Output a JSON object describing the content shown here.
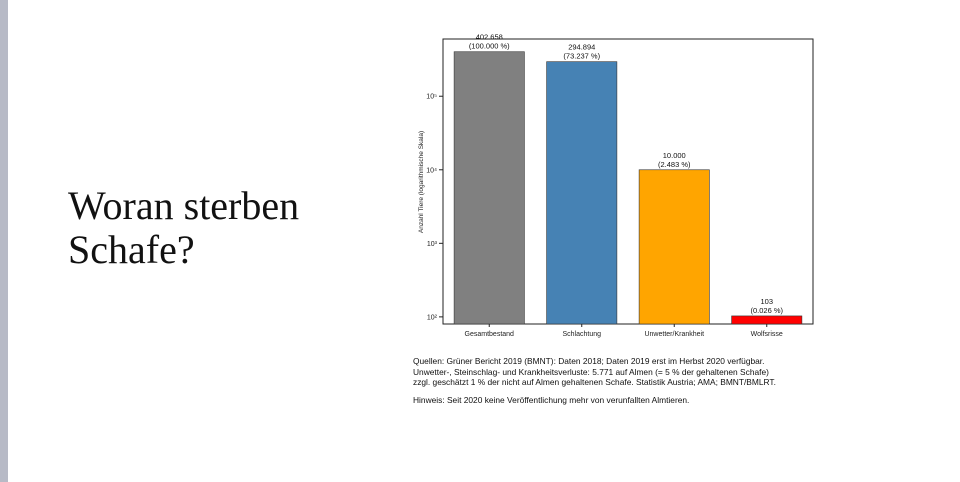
{
  "slide": {
    "title_line1": "Woran sterben",
    "title_line2": "Schafe?"
  },
  "chart_data": {
    "type": "bar",
    "ylabel": "Anzahl Tiere (logarithmische Skala)",
    "yscale": "log",
    "ylim": [
      80,
      600000
    ],
    "yticks": [
      {
        "value": 100,
        "label": "10²"
      },
      {
        "value": 1000,
        "label": "10³"
      },
      {
        "value": 10000,
        "label": "10⁴"
      },
      {
        "value": 100000,
        "label": "10⁵"
      }
    ],
    "categories": [
      "Gesamtbestand",
      "Schlachtung",
      "Unwetter/Krankheit",
      "Wolfsrisse"
    ],
    "values": [
      402658,
      294894,
      10000,
      103
    ],
    "value_labels": [
      "402.658",
      "294.894",
      "10.000",
      "103"
    ],
    "percent_labels": [
      "(100.000 %)",
      "(73.237 %)",
      "(2.483 %)",
      "(0.026 %)"
    ],
    "colors": [
      "#808080",
      "#4682b4",
      "#ffa500",
      "#ff0000"
    ],
    "grid": false
  },
  "sources": {
    "line1": "Quellen: Grüner Bericht 2019 (BMNT): Daten 2018; Daten 2019 erst im Herbst 2020 verfügbar.",
    "line2": "Unwetter-, Steinschlag- und Krankheitsverluste: 5.771 auf Almen (= 5 % der gehaltenen Schafe)",
    "line3": "zzgl. geschätzt 1 % der nicht auf Almen gehaltenen Schafe. Statistik Austria; AMA; BMNT/BMLRT.",
    "note": "Hinweis: Seit 2020 keine Veröffentlichung mehr von verunfallten Almtieren."
  }
}
